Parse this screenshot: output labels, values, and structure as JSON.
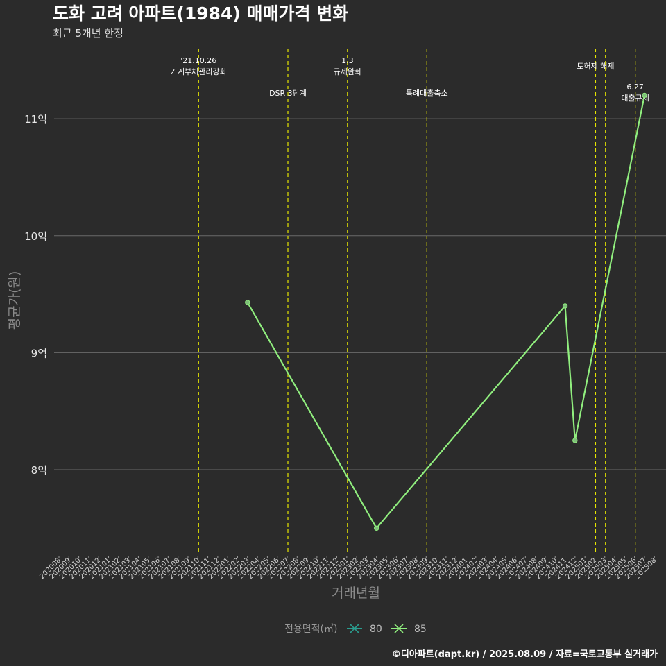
{
  "chart_data": {
    "type": "line",
    "title": "도화 고려 아파트(1984) 매매가격 변화",
    "subtitle": "최근 5개년 한정",
    "xlabel": "거래년월",
    "ylabel": "평균가(원)",
    "caption": "©디아파트(dapt.kr) / 2025.08.09 / 자료=국토교통부 실거래가",
    "categories": [
      "202008",
      "202009",
      "202010",
      "202011",
      "202012",
      "202101",
      "202102",
      "202103",
      "202104",
      "202105",
      "202106",
      "202107",
      "202108",
      "202109",
      "202110",
      "202111",
      "202112",
      "202201",
      "202202",
      "202203",
      "202204",
      "202205",
      "202206",
      "202207",
      "202208",
      "202209",
      "202210",
      "202211",
      "202212",
      "202301",
      "202302",
      "202303",
      "202304",
      "202305",
      "202306",
      "202307",
      "202308",
      "202309",
      "202310",
      "202311",
      "202312",
      "202401",
      "202402",
      "202403",
      "202404",
      "202405",
      "202406",
      "202407",
      "202408",
      "202409",
      "202410",
      "202411",
      "202412",
      "202501",
      "202502",
      "202503",
      "202504",
      "202505",
      "202506",
      "202507",
      "202508"
    ],
    "yticks": [
      {
        "value": 8,
        "label": "8억"
      },
      {
        "value": 9,
        "label": "9억"
      },
      {
        "value": 10,
        "label": "10억"
      },
      {
        "value": 11,
        "label": "11억"
      }
    ],
    "ylim": [
      7.3,
      11.6
    ],
    "legend": {
      "title": "전용면적(㎡)",
      "entries": [
        {
          "label": "80",
          "color": "#2a9d8f"
        },
        {
          "label": "85",
          "color": "#90ee7e"
        }
      ]
    },
    "series": [
      {
        "name": "80",
        "color": "#2a9d8f",
        "points": []
      },
      {
        "name": "85",
        "color": "#90ee7e",
        "points": [
          {
            "x": "202203",
            "y": 9.43
          },
          {
            "x": "202304",
            "y": 7.5
          },
          {
            "x": "202411",
            "y": 9.4
          },
          {
            "x": "202412",
            "y": 8.25
          },
          {
            "x": "202507",
            "y": 11.2
          }
        ]
      }
    ],
    "events": [
      {
        "x": "202110",
        "lines": [
          "'21.10.26",
          "가계부채관리강화"
        ],
        "row": 0
      },
      {
        "x": "202207",
        "lines": [
          "DSR 3단계"
        ],
        "row": 2
      },
      {
        "x": "202301",
        "lines": [
          "1.3",
          "규제완화"
        ],
        "row": 0
      },
      {
        "x": "202309",
        "lines": [
          "특례대출축소"
        ],
        "row": 2
      },
      {
        "x": "202502",
        "lines": [
          "토허제 해제"
        ],
        "row": 1
      },
      {
        "x": "202503",
        "lines": [],
        "row": 1
      },
      {
        "x": "202506",
        "lines": [
          "6.27",
          "대출규제"
        ],
        "row": 3
      }
    ],
    "colors": {
      "background": "#2b2b2b",
      "grid": "#6a6a6a",
      "event_line": "#e6e600",
      "line": "#90ee7e"
    }
  }
}
